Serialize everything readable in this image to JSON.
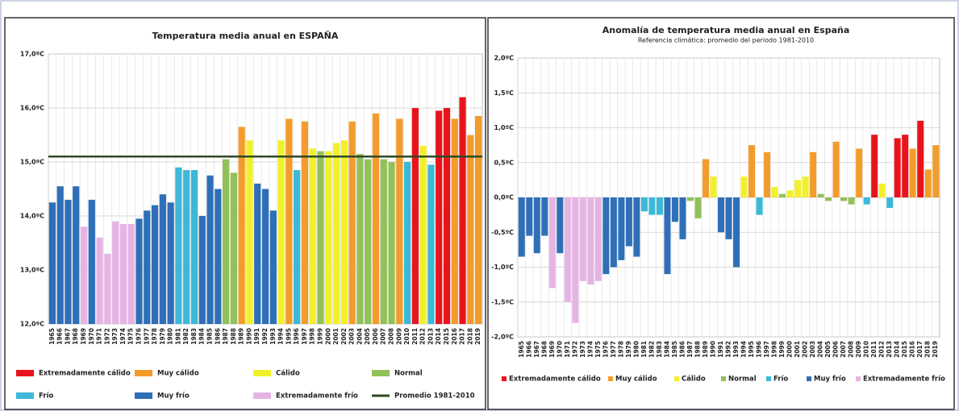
{
  "chart_data": [
    {
      "type": "bar",
      "title": "Temperatura media anual en ESPAÑA",
      "categories": [
        "1965",
        "1966",
        "1967",
        "1968",
        "1969",
        "1970",
        "1971",
        "1972",
        "1973",
        "1974",
        "1975",
        "1976",
        "1977",
        "1978",
        "1979",
        "1980",
        "1981",
        "1982",
        "1983",
        "1984",
        "1985",
        "1986",
        "1987",
        "1988",
        "1989",
        "1990",
        "1991",
        "1992",
        "1993",
        "1994",
        "1995",
        "1996",
        "1997",
        "1998",
        "1999",
        "2000",
        "2001",
        "2002",
        "2003",
        "2004",
        "2005",
        "2006",
        "2007",
        "2008",
        "2009",
        "2010",
        "2011",
        "2012",
        "2013",
        "2014",
        "2015",
        "2016",
        "2017",
        "2018",
        "2019"
      ],
      "values": [
        14.25,
        14.55,
        14.3,
        14.55,
        13.8,
        14.3,
        13.6,
        13.3,
        13.9,
        13.85,
        13.85,
        13.95,
        14.1,
        14.2,
        14.4,
        14.25,
        14.9,
        14.85,
        14.85,
        14.0,
        14.75,
        14.5,
        15.05,
        14.8,
        15.65,
        15.4,
        14.6,
        14.5,
        14.1,
        15.4,
        15.8,
        14.85,
        15.75,
        15.25,
        15.2,
        15.2,
        15.35,
        15.4,
        15.75,
        15.15,
        15.05,
        15.9,
        15.05,
        15.0,
        15.8,
        15.0,
        16.0,
        15.3,
        14.95,
        15.95,
        16.0,
        15.8,
        16.2,
        15.5,
        15.85
      ],
      "colors": [
        "#2e6fb7",
        "#2e6fb7",
        "#2e6fb7",
        "#2e6fb7",
        "#e6b4e4",
        "#2e6fb7",
        "#e6b4e4",
        "#e6b4e4",
        "#e6b4e4",
        "#e6b4e4",
        "#e6b4e4",
        "#2e6fb7",
        "#2e6fb7",
        "#2e6fb7",
        "#2e6fb7",
        "#2e6fb7",
        "#3cb8d8",
        "#3cb8d8",
        "#3cb8d8",
        "#2e6fb7",
        "#2e6fb7",
        "#2e6fb7",
        "#92c05a",
        "#92c05a",
        "#f39c2b",
        "#f2f02a",
        "#2e6fb7",
        "#2e6fb7",
        "#2e6fb7",
        "#f2f02a",
        "#f39c2b",
        "#3cb8d8",
        "#f39c2b",
        "#f2f02a",
        "#92c05a",
        "#f2f02a",
        "#f2f02a",
        "#f2f02a",
        "#f39c2b",
        "#92c05a",
        "#92c05a",
        "#f39c2b",
        "#92c05a",
        "#92c05a",
        "#f39c2b",
        "#3cb8d8",
        "#e8141c",
        "#f2f02a",
        "#3cb8d8",
        "#e8141c",
        "#e8141c",
        "#f39c2b",
        "#e8141c",
        "#f39c2b",
        "#f39c2b"
      ],
      "ylim": [
        12,
        17
      ],
      "yticks": [
        {
          "value": 12,
          "label": "12,0ºC"
        },
        {
          "value": 13,
          "label": "13,0ºC"
        },
        {
          "value": 14,
          "label": "14,0ºC"
        },
        {
          "value": 15,
          "label": "15,0ºC"
        },
        {
          "value": 16,
          "label": "16,0ºC"
        },
        {
          "value": 17,
          "label": "17,0ºC"
        }
      ],
      "grid": true,
      "reference_line": {
        "name": "Promedio 1981-2010",
        "value": 15.1,
        "color": "#2f4a24"
      },
      "legend": [
        {
          "name": "Extremadamente cálido",
          "color": "#e8141c"
        },
        {
          "name": "Muy cálido",
          "color": "#f39c2b"
        },
        {
          "name": "Cálido",
          "color": "#f2f02a"
        },
        {
          "name": "Normal",
          "color": "#92c05a"
        },
        {
          "name": "Frío",
          "color": "#3cb8d8"
        },
        {
          "name": "Muy frío",
          "color": "#2e6fb7"
        },
        {
          "name": "Extremadamente frío",
          "color": "#e6b4e4"
        }
      ]
    },
    {
      "type": "bar",
      "title": "Anomalía de temperatura media anual en España",
      "subtitle": "Referencia climática: promedio del periodo 1981-2010",
      "categories": [
        "1965",
        "1966",
        "1967",
        "1968",
        "1969",
        "1970",
        "1971",
        "1972",
        "1973",
        "1974",
        "1975",
        "1976",
        "1977",
        "1978",
        "1979",
        "1980",
        "1981",
        "1982",
        "1983",
        "1984",
        "1985",
        "1986",
        "1987",
        "1988",
        "1989",
        "1990",
        "1991",
        "1992",
        "1993",
        "1994",
        "1995",
        "1996",
        "1997",
        "1998",
        "1999",
        "2000",
        "2001",
        "2002",
        "2003",
        "2004",
        "2005",
        "2006",
        "2007",
        "2008",
        "2009",
        "2010",
        "2011",
        "2012",
        "2013",
        "2014",
        "2015",
        "2016",
        "2017",
        "2018",
        "2019"
      ],
      "values": [
        -0.85,
        -0.55,
        -0.8,
        -0.55,
        -1.3,
        -0.8,
        -1.5,
        -1.8,
        -1.2,
        -1.25,
        -1.2,
        -1.1,
        -1.0,
        -0.9,
        -0.7,
        -0.85,
        -0.2,
        -0.25,
        -0.25,
        -1.1,
        -0.35,
        -0.6,
        -0.05,
        -0.3,
        0.55,
        0.3,
        -0.5,
        -0.6,
        -1.0,
        0.3,
        0.75,
        -0.25,
        0.65,
        0.15,
        0.05,
        0.1,
        0.25,
        0.3,
        0.65,
        0.05,
        -0.05,
        0.8,
        -0.05,
        -0.1,
        0.7,
        -0.1,
        0.9,
        0.2,
        -0.15,
        0.85,
        0.9,
        0.7,
        1.1,
        0.4,
        0.75
      ],
      "colors": [
        "#2e6fb7",
        "#2e6fb7",
        "#2e6fb7",
        "#2e6fb7",
        "#e6b4e4",
        "#2e6fb7",
        "#e6b4e4",
        "#e6b4e4",
        "#e6b4e4",
        "#e6b4e4",
        "#e6b4e4",
        "#2e6fb7",
        "#2e6fb7",
        "#2e6fb7",
        "#2e6fb7",
        "#2e6fb7",
        "#3cb8d8",
        "#3cb8d8",
        "#3cb8d8",
        "#2e6fb7",
        "#2e6fb7",
        "#2e6fb7",
        "#92c05a",
        "#92c05a",
        "#f39c2b",
        "#f2f02a",
        "#2e6fb7",
        "#2e6fb7",
        "#2e6fb7",
        "#f2f02a",
        "#f39c2b",
        "#3cb8d8",
        "#f39c2b",
        "#f2f02a",
        "#92c05a",
        "#f2f02a",
        "#f2f02a",
        "#f2f02a",
        "#f39c2b",
        "#92c05a",
        "#92c05a",
        "#f39c2b",
        "#92c05a",
        "#92c05a",
        "#f39c2b",
        "#3cb8d8",
        "#e8141c",
        "#f2f02a",
        "#3cb8d8",
        "#e8141c",
        "#e8141c",
        "#f39c2b",
        "#e8141c",
        "#f39c2b",
        "#f39c2b"
      ],
      "ylim": [
        -2,
        2
      ],
      "yticks": [
        {
          "value": -2,
          "label": "-2,0ºC"
        },
        {
          "value": -1.5,
          "label": "-1,5ºC"
        },
        {
          "value": -1,
          "label": "-1,0ºC"
        },
        {
          "value": -0.5,
          "label": "-0,5ºC"
        },
        {
          "value": 0,
          "label": "0,0ºC"
        },
        {
          "value": 0.5,
          "label": "0,5ºC"
        },
        {
          "value": 1,
          "label": "1,0ºC"
        },
        {
          "value": 1.5,
          "label": "1,5ºC"
        },
        {
          "value": 2,
          "label": "2,0ºC"
        }
      ],
      "grid": true,
      "legend": [
        {
          "name": "Extremadamente cálido",
          "color": "#e8141c"
        },
        {
          "name": "Muy cálido",
          "color": "#f39c2b"
        },
        {
          "name": "Cálido",
          "color": "#f2f02a"
        },
        {
          "name": "Normal",
          "color": "#92c05a"
        },
        {
          "name": "Frío",
          "color": "#3cb8d8"
        },
        {
          "name": "Muy frío",
          "color": "#2e6fb7"
        },
        {
          "name": "Extremadamente frío",
          "color": "#e6b4e4"
        }
      ]
    }
  ]
}
